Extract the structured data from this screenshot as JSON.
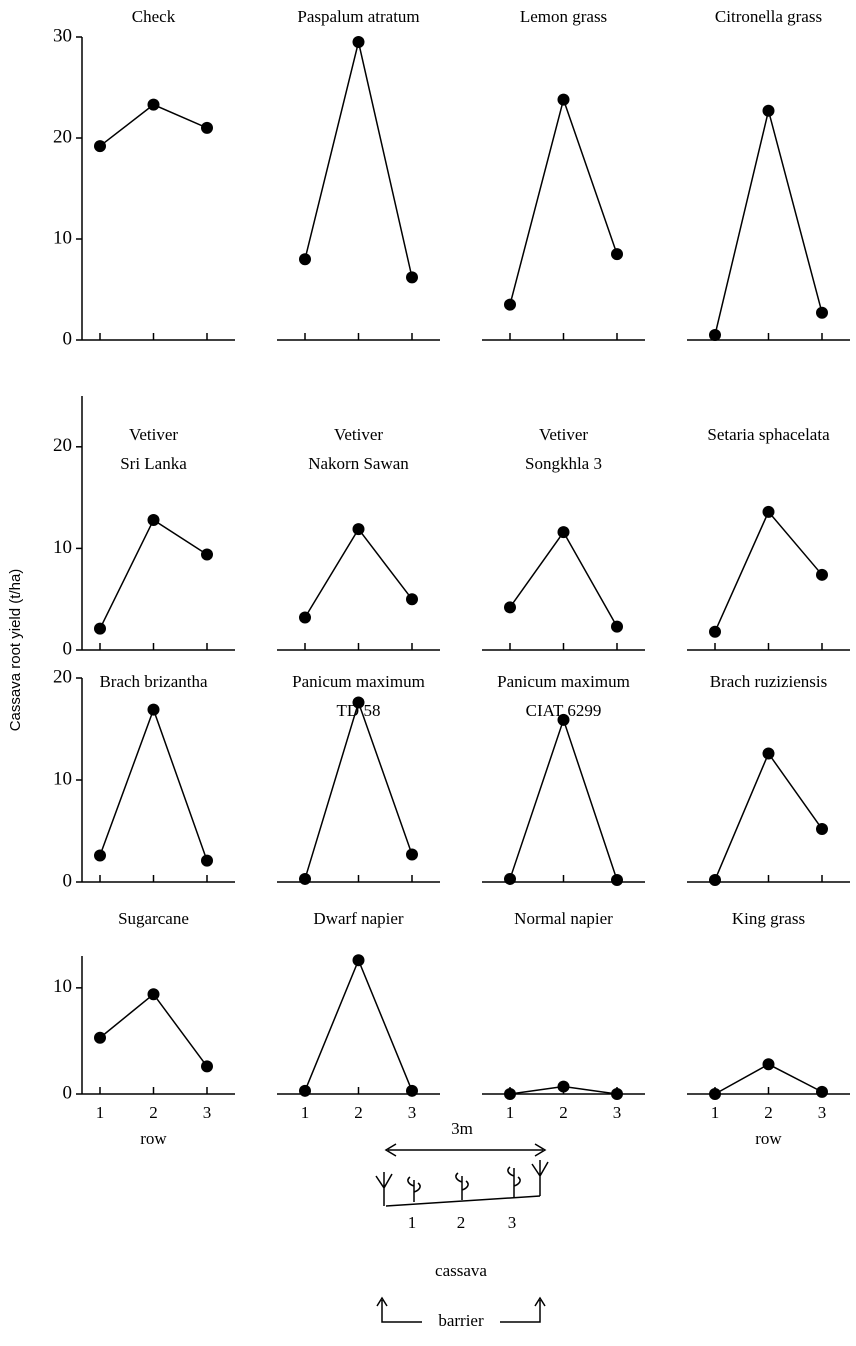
{
  "ylabel": "Cassava root yield (t/ha)",
  "chart_data": [
    {
      "type": "line",
      "title": [
        "Check"
      ],
      "categories": [
        null,
        null,
        null
      ],
      "values": [
        19.2,
        23.3,
        21.0
      ],
      "color": "#000000",
      "ylim": [
        0,
        30
      ],
      "yticks": [
        0,
        10,
        20,
        30
      ]
    },
    {
      "type": "line",
      "title": [
        "Paspalum atratum"
      ],
      "categories": [
        null,
        null,
        null
      ],
      "values": [
        8.0,
        29.5,
        6.2
      ],
      "color": "#000000",
      "ylim": [
        0,
        30
      ]
    },
    {
      "type": "line",
      "title": [
        "Lemon grass"
      ],
      "categories": [
        null,
        null,
        null
      ],
      "values": [
        3.5,
        23.8,
        8.5
      ],
      "color": "#000000",
      "ylim": [
        0,
        30
      ]
    },
    {
      "type": "line",
      "title": [
        "Citronella grass"
      ],
      "categories": [
        null,
        null,
        null
      ],
      "values": [
        0.5,
        22.7,
        2.7
      ],
      "color": "#000000",
      "ylim": [
        0,
        30
      ]
    },
    {
      "type": "line",
      "title": [
        "Vetiver",
        "Sri Lanka"
      ],
      "categories": [
        null,
        null,
        null
      ],
      "values": [
        2.1,
        12.8,
        9.4
      ],
      "color": "#000000",
      "ylim": [
        0,
        25
      ],
      "yticks": [
        0,
        10,
        20
      ]
    },
    {
      "type": "line",
      "title": [
        "Vetiver",
        "Nakorn Sawan"
      ],
      "categories": [
        null,
        null,
        null
      ],
      "values": [
        3.2,
        11.9,
        5.0
      ],
      "color": "#000000",
      "ylim": [
        0,
        25
      ]
    },
    {
      "type": "line",
      "title": [
        "Vetiver",
        "Songkhla 3"
      ],
      "categories": [
        null,
        null,
        null
      ],
      "values": [
        4.2,
        11.6,
        2.3
      ],
      "color": "#000000",
      "ylim": [
        0,
        25
      ]
    },
    {
      "type": "line",
      "title": [
        "Setaria sphacelata"
      ],
      "categories": [
        null,
        null,
        null
      ],
      "values": [
        1.8,
        13.6,
        7.4
      ],
      "color": "#000000",
      "ylim": [
        0,
        25
      ]
    },
    {
      "type": "line",
      "title": [
        "Brach brizantha"
      ],
      "categories": [
        null,
        null,
        null
      ],
      "values": [
        2.6,
        16.9,
        2.1
      ],
      "color": "#000000",
      "ylim": [
        0,
        20
      ],
      "yticks": [
        0,
        10,
        20
      ]
    },
    {
      "type": "line",
      "title": [
        "Panicum maximum",
        "TD 58"
      ],
      "categories": [
        null,
        null,
        null
      ],
      "values": [
        0.3,
        17.6,
        2.7
      ],
      "color": "#000000",
      "ylim": [
        0,
        20
      ]
    },
    {
      "type": "line",
      "title": [
        "Panicum maximum",
        "CIAT 6299"
      ],
      "categories": [
        null,
        null,
        null
      ],
      "values": [
        0.3,
        15.9,
        0.2
      ],
      "color": "#000000",
      "ylim": [
        0,
        20
      ]
    },
    {
      "type": "line",
      "title": [
        "Brach ruziziensis"
      ],
      "categories": [
        null,
        null,
        null
      ],
      "values": [
        0.2,
        12.6,
        5.2
      ],
      "color": "#000000",
      "ylim": [
        0,
        20
      ]
    },
    {
      "type": "line",
      "title": [
        "Sugarcane"
      ],
      "categories": [
        "1",
        "2",
        "3"
      ],
      "values": [
        5.3,
        9.4,
        2.6
      ],
      "color": "#000000",
      "ylim": [
        0,
        13
      ],
      "yticks": [
        0,
        10
      ],
      "xlabel": "row"
    },
    {
      "type": "line",
      "title": [
        "Dwarf napier"
      ],
      "categories": [
        "1",
        "2",
        "3"
      ],
      "values": [
        0.3,
        12.6,
        0.3
      ],
      "color": "#000000",
      "ylim": [
        0,
        13
      ]
    },
    {
      "type": "line",
      "title": [
        "Normal napier"
      ],
      "categories": [
        "1",
        "2",
        "3"
      ],
      "values": [
        0,
        0.7,
        0
      ],
      "color": "#000000",
      "ylim": [
        0,
        13
      ]
    },
    {
      "type": "line",
      "title": [
        "King grass"
      ],
      "categories": [
        "1",
        "2",
        "3"
      ],
      "values": [
        0,
        2.8,
        0.2
      ],
      "color": "#000000",
      "ylim": [
        0,
        13
      ],
      "xlabel": "row"
    }
  ],
  "diagram": {
    "width_label": "3m",
    "rows": [
      "1",
      "2",
      "3"
    ],
    "crop": "cassava",
    "barrier": "barrier"
  }
}
